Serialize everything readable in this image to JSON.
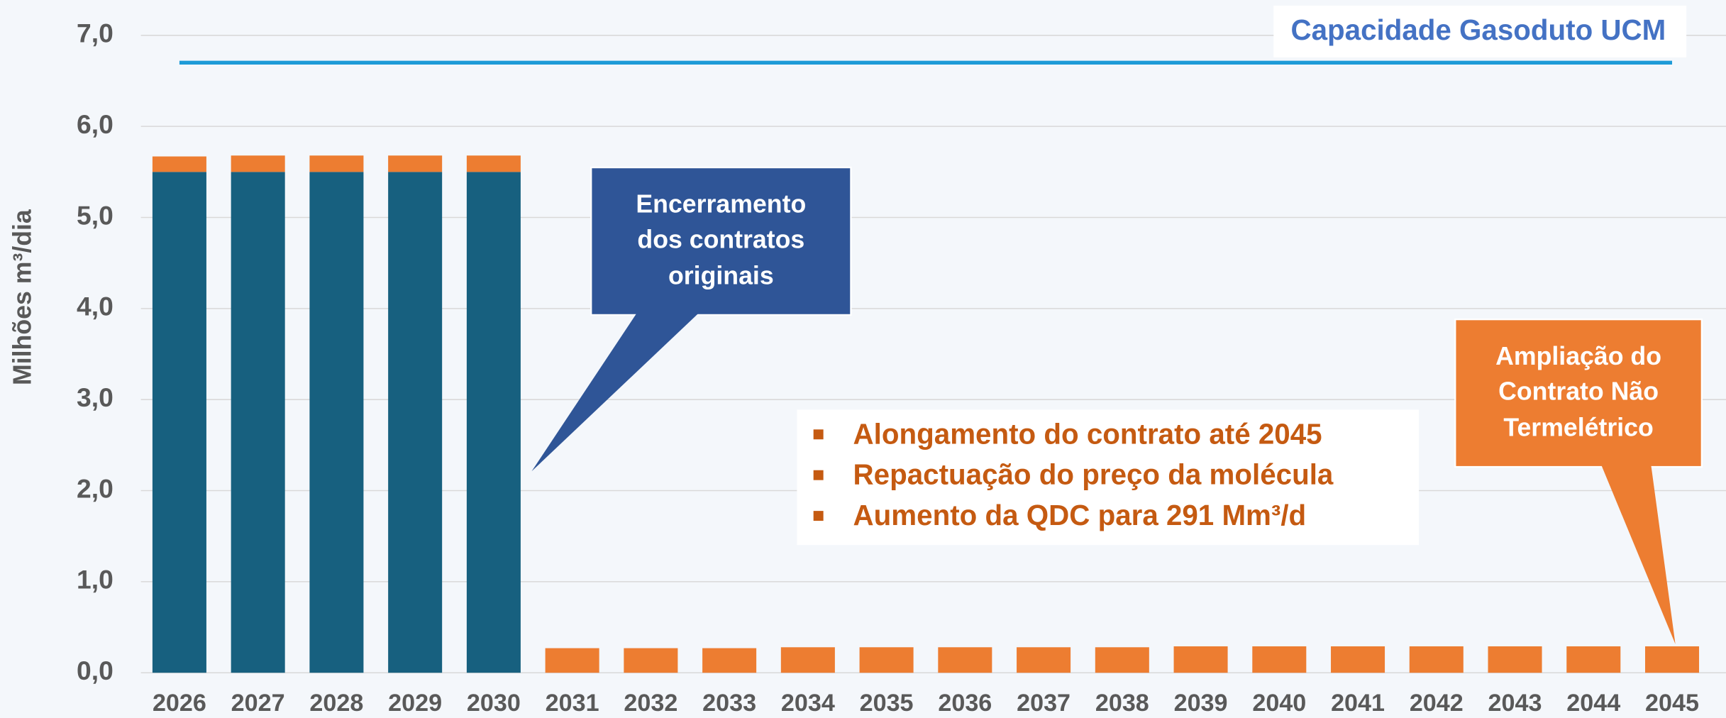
{
  "chart_data": {
    "type": "stacked-bar",
    "y_label": "Milhões m³/dia",
    "categories": [
      "2026",
      "2027",
      "2028",
      "2029",
      "2030",
      "2031",
      "2032",
      "2033",
      "2034",
      "2035",
      "2036",
      "2037",
      "2038",
      "2039",
      "2040",
      "2041",
      "2042",
      "2043",
      "2044",
      "2045"
    ],
    "series": [
      {
        "color": "#17607f",
        "values": [
          5.5,
          5.5,
          5.5,
          5.5,
          5.5,
          null,
          null,
          null,
          null,
          null,
          null,
          null,
          null,
          null,
          null,
          null,
          null,
          null,
          null,
          null
        ]
      },
      {
        "color": "#ed7d31",
        "values": [
          0.17,
          0.18,
          0.18,
          0.18,
          0.18,
          0.27,
          0.27,
          0.27,
          0.28,
          0.28,
          0.28,
          0.28,
          0.28,
          0.29,
          0.29,
          0.29,
          0.29,
          0.29,
          0.29,
          0.29
        ]
      }
    ],
    "ylim": [
      0,
      7
    ],
    "yticks": [
      {
        "value": 0,
        "label": "0,0"
      },
      {
        "value": 1,
        "label": "1,0"
      },
      {
        "value": 2,
        "label": "2,0"
      },
      {
        "value": 3,
        "label": "3,0"
      },
      {
        "value": 4,
        "label": "4,0"
      },
      {
        "value": 5,
        "label": "5,0"
      },
      {
        "value": 6,
        "label": "6,0"
      },
      {
        "value": 7,
        "label": "7,0"
      }
    ],
    "grid": true,
    "reference_line": {
      "label": "Capacidade Gasoduto UCM",
      "value": 6.7,
      "color": "#1e9bd7"
    },
    "annotations": [
      {
        "lines": [
          "Encerramento",
          "dos contratos",
          "originais"
        ],
        "color": "#2f5597"
      },
      {
        "lines": [
          "Ampliação do",
          "Contrato Não",
          "Termelétrico"
        ],
        "color": "#ed7d31"
      }
    ],
    "bullets": [
      "Alongamento do contrato até 2045",
      "Repactuação do preço da molécula",
      "Aumento da QDC para 291 Mm³/d"
    ]
  }
}
